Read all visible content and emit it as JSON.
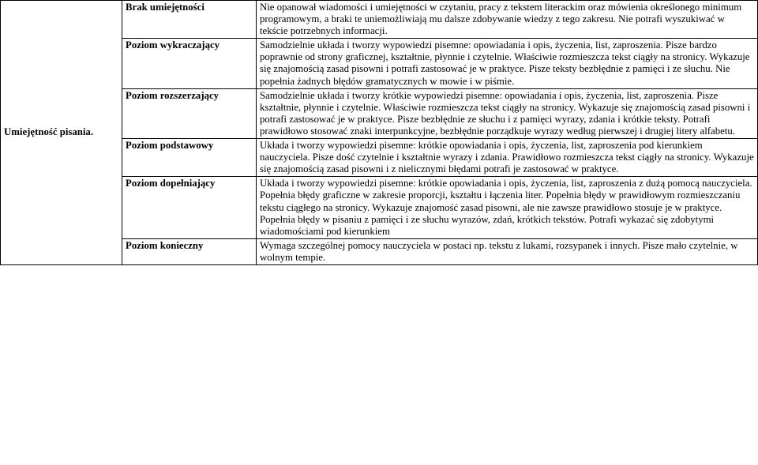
{
  "skill_label": "Umiejętność pisania.",
  "rows": [
    {
      "level": "Brak umiejętności",
      "desc": "Nie opanował wiadomości i umiejętności w czytaniu, pracy z tekstem literackim oraz mówienia określonego minimum programowym, a braki te uniemożliwiają mu dalsze zdobywanie wiedzy z tego zakresu. Nie potrafi wyszukiwać w tekście potrzebnych informacji."
    },
    {
      "level": "Poziom wykraczający",
      "desc": "Samodzielnie układa i tworzy wypowiedzi pisemne: opowiadania i opis, życzenia, list, zaproszenia. Pisze bardzo poprawnie od strony graficznej, kształtnie, płynnie i czytelnie. Właściwie rozmieszcza tekst ciągły na stronicy. Wykazuje się znajomością zasad pisowni i potrafi zastosować je w praktyce. Pisze teksty bezbłędnie z pamięci i ze słuchu. Nie popełnia żadnych błędów gramatycznych w mowie i w piśmie."
    },
    {
      "level": "Poziom rozszerzający",
      "desc": "Samodzielnie układa i tworzy krótkie wypowiedzi pisemne: opowiadania i opis, życzenia, list, zaproszenia. Pisze kształtnie, płynnie i czytelnie. Właściwie rozmieszcza tekst ciągły na stronicy. Wykazuje się znajomością zasad pisowni i potrafi zastosować je w praktyce. Pisze bezbłędnie ze słuchu i z pamięci wyrazy, zdania i krótkie teksty. Potrafi prawidłowo stosować znaki interpunkcyjne, bezbłędnie porządkuje wyrazy według pierwszej i drugiej litery alfabetu."
    },
    {
      "level": "Poziom podstawowy",
      "desc": "Układa i tworzy wypowiedzi pisemne: krótkie opowiadania i opis, życzenia, list, zaproszenia pod kierunkiem nauczyciela. Pisze dość czytelnie i kształtnie wyrazy i zdania. Prawidłowo rozmieszcza tekst ciągły na stronicy. Wykazuje się znajomością zasad pisowni i z nielicznymi błędami potrafi je zastosować w praktyce."
    },
    {
      "level": "Poziom dopełniający",
      "desc": "Układa i tworzy wypowiedzi pisemne: krótkie opowiadania i opis, życzenia, list, zaproszenia z dużą pomocą nauczyciela. Popełnia błędy graficzne w zakresie proporcji, kształtu i łączenia liter. Popełnia błędy w prawidłowym rozmieszczaniu tekstu ciągłego na stronicy. Wykazuje znajomość zasad pisowni, ale nie zawsze prawidłowo stosuje je w praktyce. Popełnia błędy w pisaniu z pamięci i ze słuchu wyrazów, zdań, krótkich tekstów. Potrafi wykazać się zdobytymi wiadomościami pod kierunkiem"
    },
    {
      "level": "Poziom konieczny",
      "desc": "Wymaga szczególnej pomocy nauczyciela w postaci np. tekstu z lukami, rozsypanek i innych. Pisze mało czytelnie, w wolnym tempie."
    }
  ]
}
